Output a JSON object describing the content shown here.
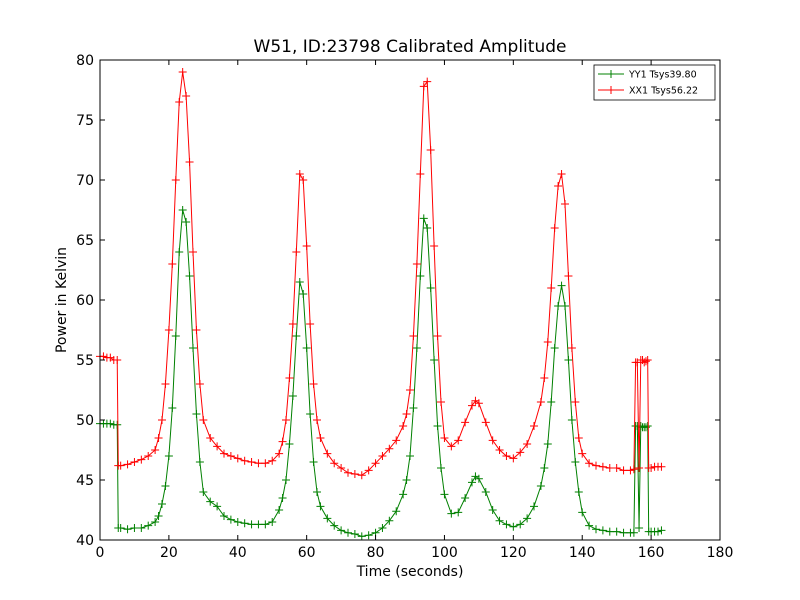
{
  "chart_data": {
    "type": "line",
    "title": "W51, ID:23798 Calibrated Amplitude",
    "xlabel": "Time (seconds)",
    "ylabel": "Power in Kelvin",
    "xlim": [
      0,
      180
    ],
    "ylim": [
      40,
      80
    ],
    "xticks": [
      "0",
      "20",
      "40",
      "60",
      "80",
      "100",
      "120",
      "140",
      "160",
      "180"
    ],
    "yticks": [
      "40",
      "45",
      "50",
      "55",
      "60",
      "65",
      "70",
      "75",
      "80"
    ],
    "grid": false,
    "legend_position": "top-right",
    "marker": "+",
    "series": [
      {
        "name": "YY1 Tsys39.80",
        "color": "#008000",
        "x": [
          0,
          1,
          2,
          3,
          4,
          5,
          5.3,
          6,
          8,
          10,
          12,
          14,
          16,
          17,
          18,
          19,
          20,
          21,
          22,
          23,
          24,
          25,
          26,
          27,
          28,
          29,
          30,
          32,
          34,
          36,
          38,
          40,
          42,
          44,
          46,
          48,
          50,
          52,
          53,
          54,
          55,
          56,
          57,
          58,
          59,
          60,
          61,
          62,
          63,
          64,
          66,
          68,
          70,
          72,
          74,
          76,
          78,
          80,
          82,
          84,
          86,
          88,
          89,
          90,
          91,
          92,
          93,
          94,
          95,
          96,
          97,
          98,
          99,
          100,
          102,
          104,
          106,
          108,
          109,
          110,
          112,
          114,
          116,
          118,
          120,
          122,
          124,
          126,
          128,
          129,
          130,
          131,
          132,
          133,
          134,
          135,
          136,
          137,
          138,
          139,
          140,
          142,
          144,
          146,
          148,
          150,
          152,
          154,
          155,
          155.5,
          156,
          156.5,
          157,
          157.5,
          158,
          158.5,
          159,
          159.3,
          160,
          161,
          162,
          163
        ],
        "values": [
          49.7,
          49.7,
          49.7,
          49.7,
          49.6,
          49.6,
          41.0,
          41.0,
          40.9,
          41.0,
          41.0,
          41.2,
          41.5,
          42.0,
          43.0,
          44.5,
          47.0,
          51.0,
          57.0,
          64.0,
          67.5,
          66.5,
          62.0,
          56.0,
          50.5,
          46.5,
          44.0,
          43.2,
          42.8,
          42.0,
          41.7,
          41.5,
          41.4,
          41.3,
          41.3,
          41.3,
          41.5,
          42.5,
          43.5,
          45.0,
          48.0,
          52.0,
          57.0,
          61.5,
          60.5,
          56.0,
          50.5,
          46.5,
          44.0,
          42.8,
          41.8,
          41.2,
          40.8,
          40.6,
          40.5,
          40.3,
          40.4,
          40.6,
          41.0,
          41.6,
          42.4,
          43.8,
          45.0,
          47.0,
          51.0,
          56.0,
          62.0,
          66.8,
          66.0,
          61.0,
          55.0,
          49.5,
          46.0,
          43.8,
          42.2,
          42.3,
          43.5,
          44.8,
          45.3,
          45.1,
          44.0,
          42.5,
          41.6,
          41.3,
          41.1,
          41.3,
          41.8,
          42.8,
          44.5,
          46.0,
          48.0,
          51.5,
          56.0,
          59.5,
          61.2,
          59.5,
          55.0,
          50.0,
          46.5,
          44.0,
          42.3,
          41.2,
          40.9,
          40.8,
          40.7,
          40.7,
          40.6,
          40.6,
          40.6,
          49.5,
          49.5,
          41.0,
          49.5,
          49.4,
          49.4,
          49.4,
          49.5,
          40.7,
          40.7,
          40.7,
          40.7,
          40.8
        ]
      },
      {
        "name": "XX1 Tsys56.22",
        "color": "#ff0000",
        "x": [
          0,
          1,
          2,
          3,
          4,
          5,
          5.3,
          6,
          8,
          10,
          12,
          14,
          16,
          17,
          18,
          19,
          20,
          21,
          22,
          23,
          24,
          25,
          26,
          27,
          28,
          29,
          30,
          32,
          34,
          36,
          38,
          40,
          42,
          44,
          46,
          48,
          50,
          52,
          53,
          54,
          55,
          56,
          57,
          58,
          59,
          60,
          61,
          62,
          63,
          64,
          66,
          68,
          70,
          72,
          74,
          76,
          78,
          80,
          82,
          84,
          86,
          88,
          89,
          90,
          91,
          92,
          93,
          94,
          95,
          96,
          97,
          98,
          99,
          100,
          102,
          104,
          106,
          108,
          109,
          110,
          112,
          114,
          116,
          118,
          120,
          122,
          124,
          126,
          128,
          129,
          130,
          131,
          132,
          133,
          134,
          135,
          136,
          137,
          138,
          139,
          140,
          142,
          144,
          146,
          148,
          150,
          152,
          154,
          155,
          155.5,
          156,
          156.5,
          157,
          157.5,
          158,
          158.5,
          159,
          159.3,
          160,
          161,
          162,
          163
        ],
        "values": [
          55.3,
          55.3,
          55.2,
          55.2,
          55.0,
          55.0,
          46.2,
          46.2,
          46.3,
          46.5,
          46.7,
          47.0,
          47.5,
          48.5,
          50.0,
          53.0,
          57.5,
          63.0,
          70.0,
          76.5,
          79.0,
          77.0,
          71.5,
          64.0,
          57.5,
          53.0,
          50.0,
          48.5,
          47.8,
          47.2,
          47.0,
          46.8,
          46.6,
          46.5,
          46.4,
          46.4,
          46.6,
          47.2,
          48.2,
          50.0,
          53.5,
          58.0,
          64.0,
          70.5,
          70.0,
          64.5,
          58.0,
          53.0,
          50.0,
          48.5,
          47.2,
          46.4,
          46.0,
          45.6,
          45.5,
          45.4,
          45.8,
          46.4,
          47.0,
          47.6,
          48.3,
          49.5,
          50.5,
          52.5,
          57.0,
          63.0,
          70.5,
          77.8,
          78.2,
          72.5,
          64.5,
          57.0,
          51.5,
          48.5,
          47.8,
          48.3,
          49.8,
          51.2,
          51.6,
          51.4,
          49.8,
          48.3,
          47.5,
          47.0,
          46.8,
          47.3,
          48.0,
          49.5,
          51.5,
          53.5,
          56.5,
          61.0,
          66.0,
          69.5,
          70.5,
          68.0,
          62.0,
          56.0,
          51.5,
          48.5,
          47.2,
          46.4,
          46.2,
          46.1,
          46.0,
          46.0,
          45.8,
          45.8,
          45.9,
          54.8,
          54.8,
          46.0,
          55.0,
          55.0,
          54.8,
          54.9,
          55.0,
          46.0,
          46.0,
          46.1,
          46.1,
          46.1
        ]
      }
    ]
  }
}
